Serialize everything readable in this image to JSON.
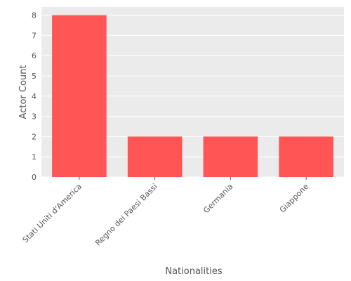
{
  "chart_data": {
    "type": "bar",
    "categories": [
      "Stati Uniti d'America",
      "Regno dei Paesi Bassi",
      "Germania",
      "Giappone"
    ],
    "values": [
      8,
      2,
      2,
      2
    ],
    "title": "",
    "xlabel": "Nationalities",
    "ylabel": "Actor Count",
    "ylim": [
      0,
      8.4
    ],
    "yticks": [
      0,
      1,
      2,
      3,
      4,
      5,
      6,
      7,
      8
    ],
    "grid": true,
    "bar_color": "#ff5555",
    "background_color": "#ebebeb",
    "grid_color": "#ffffff",
    "text_color": "#555555"
  }
}
